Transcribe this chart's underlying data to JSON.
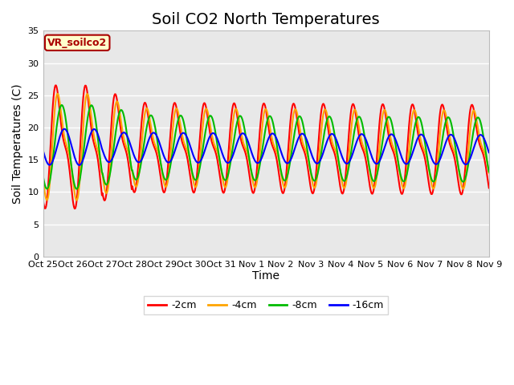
{
  "title": "Soil CO2 North Temperatures",
  "ylabel": "Soil Temperatures (C)",
  "xlabel": "Time",
  "label_box_text": "VR_soilco2",
  "ylim": [
    0,
    35
  ],
  "yticks": [
    0,
    5,
    10,
    15,
    20,
    25,
    30,
    35
  ],
  "xtick_labels": [
    "Oct 25",
    "Oct 26",
    "Oct 27",
    "Oct 28",
    "Oct 29",
    "Oct 30",
    "Oct 31",
    "Nov 1",
    "Nov 2",
    "Nov 3",
    "Nov 4",
    "Nov 5",
    "Nov 6",
    "Nov 7",
    "Nov 8",
    "Nov 9"
  ],
  "line_colors": [
    "#FF0000",
    "#FFA500",
    "#00BB00",
    "#0000FF"
  ],
  "line_labels": [
    "-2cm",
    "-4cm",
    "-8cm",
    "-16cm"
  ],
  "line_width": 1.5,
  "figure_bg": "#FFFFFF",
  "plot_bg": "#E8E8E8",
  "title_fontsize": 14,
  "tick_fontsize": 8,
  "axis_label_fontsize": 10
}
